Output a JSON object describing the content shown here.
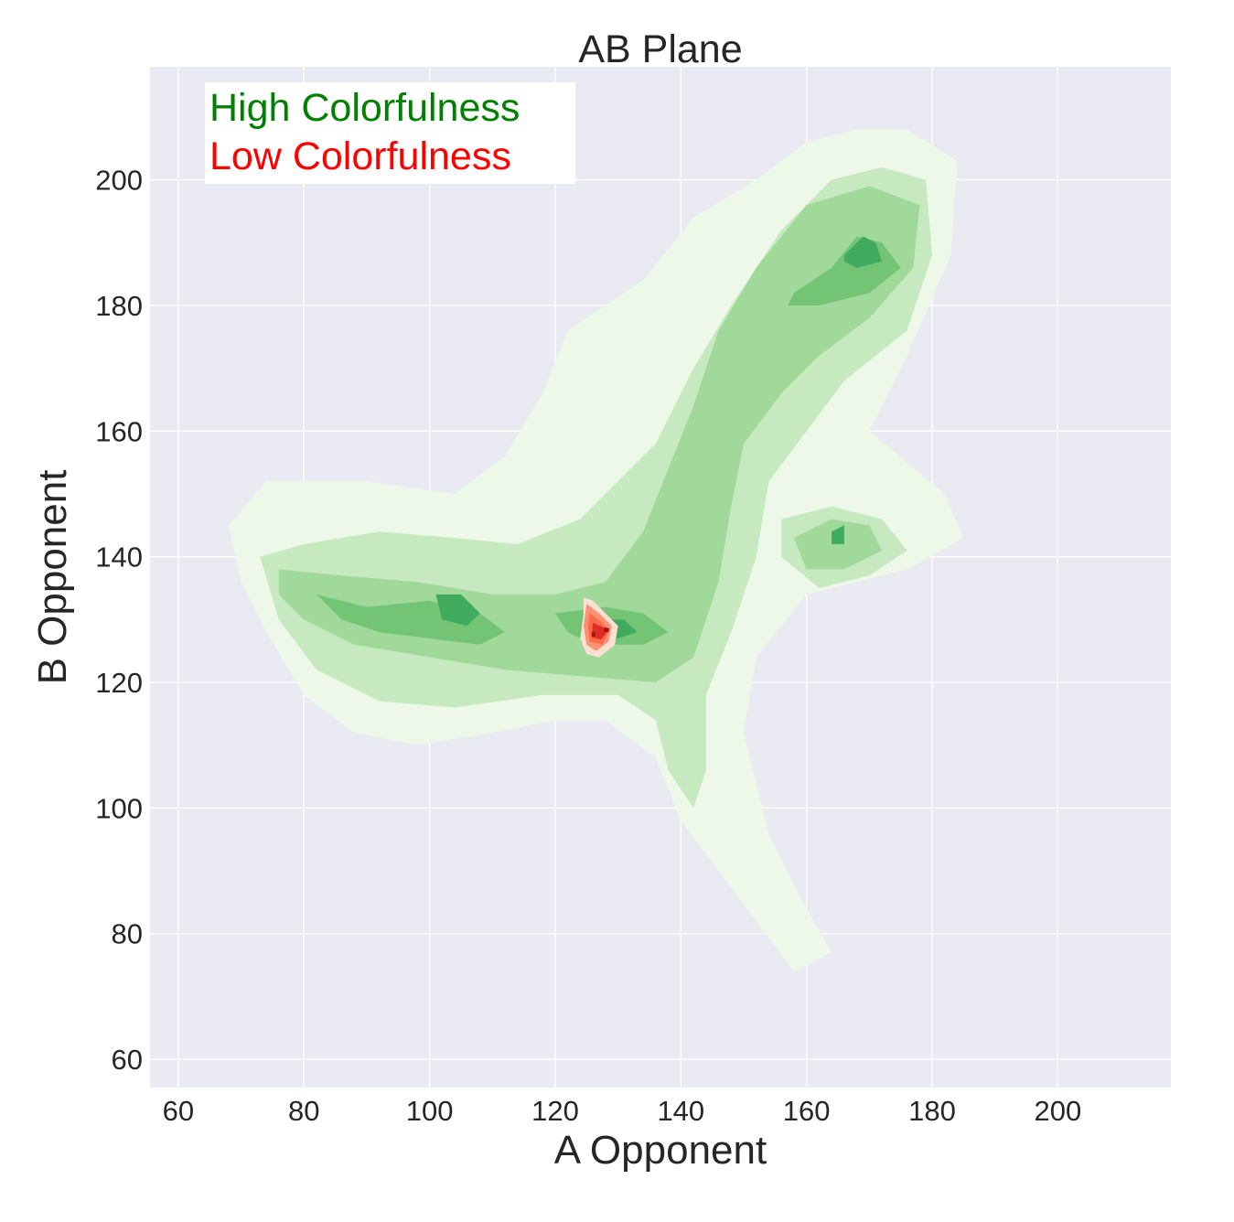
{
  "chart_data": {
    "type": "contour",
    "title": "AB Plane",
    "xlabel": "A Opponent",
    "ylabel": "B Opponent",
    "xlim": [
      55.5,
      218
    ],
    "ylim": [
      55.5,
      218
    ],
    "x_ticks": [
      60,
      80,
      100,
      120,
      140,
      160,
      180,
      200
    ],
    "y_ticks": [
      60,
      80,
      100,
      120,
      140,
      160,
      180,
      200
    ],
    "x_tick_labels": [
      "60",
      "80",
      "100",
      "120",
      "140",
      "160",
      "180",
      "200"
    ],
    "y_tick_labels": [
      "60",
      "80",
      "100",
      "120",
      "140",
      "160",
      "180",
      "200"
    ],
    "grid": true,
    "legend_placement": "top-left",
    "series": [
      {
        "name": "High Colorfulness",
        "color": "#008000",
        "level_colors": [
          "#edf8e9",
          "#c7e9c0",
          "#a1d99b",
          "#74c476",
          "#41ab5d"
        ],
        "levels": [
          [
            [
              [
                68,
                145
              ],
              [
                74,
                152
              ],
              [
                90,
                152
              ],
              [
                104,
                150
              ],
              [
                112,
                156
              ],
              [
                118,
                166
              ],
              [
                122,
                176
              ],
              [
                128,
                180
              ],
              [
                134,
                184
              ],
              [
                142,
                194
              ],
              [
                152,
                200
              ],
              [
                160,
                206
              ],
              [
                168,
                208
              ],
              [
                176,
                208
              ],
              [
                184,
                203
              ],
              [
                183,
                188
              ],
              [
                176,
                172
              ],
              [
                170,
                160
              ],
              [
                182,
                150
              ],
              [
                185,
                143
              ],
              [
                176,
                138
              ],
              [
                160,
                134
              ],
              [
                152,
                124
              ],
              [
                150,
                112
              ],
              [
                154,
                96
              ],
              [
                160,
                84
              ],
              [
                164,
                77
              ],
              [
                158,
                74
              ],
              [
                152,
                82
              ],
              [
                146,
                90
              ],
              [
                140,
                98
              ],
              [
                136,
                108
              ],
              [
                128,
                114
              ],
              [
                120,
                114
              ],
              [
                110,
                112
              ],
              [
                98,
                110
              ],
              [
                88,
                112
              ],
              [
                80,
                118
              ],
              [
                74,
                128
              ],
              [
                70,
                136
              ]
            ]
          ],
          [
            [
              [
                73,
                140
              ],
              [
                80,
                142
              ],
              [
                92,
                144
              ],
              [
                104,
                143
              ],
              [
                114,
                142
              ],
              [
                124,
                146
              ],
              [
                130,
                152
              ],
              [
                136,
                158
              ],
              [
                142,
                170
              ],
              [
                148,
                180
              ],
              [
                156,
                192
              ],
              [
                164,
                200
              ],
              [
                172,
                202
              ],
              [
                179,
                200
              ],
              [
                180,
                188
              ],
              [
                176,
                176
              ],
              [
                166,
                168
              ],
              [
                160,
                160
              ],
              [
                154,
                152
              ],
              [
                152,
                140
              ],
              [
                148,
                128
              ],
              [
                144,
                118
              ],
              [
                144,
                106
              ],
              [
                142,
                100
              ],
              [
                138,
                106
              ],
              [
                136,
                114
              ],
              [
                130,
                118
              ],
              [
                118,
                118
              ],
              [
                104,
                116
              ],
              [
                92,
                117
              ],
              [
                82,
                122
              ],
              [
                76,
                130
              ]
            ],
            [
              [
                156,
                146
              ],
              [
                164,
                148
              ],
              [
                172,
                146
              ],
              [
                176,
                141
              ],
              [
                170,
                137
              ],
              [
                162,
                135
              ],
              [
                156,
                140
              ]
            ]
          ],
          [
            [
              [
                76,
                138
              ],
              [
                86,
                137
              ],
              [
                98,
                136
              ],
              [
                110,
                134
              ],
              [
                120,
                134
              ],
              [
                128,
                136
              ],
              [
                134,
                144
              ],
              [
                138,
                154
              ],
              [
                142,
                164
              ],
              [
                146,
                176
              ],
              [
                152,
                186
              ],
              [
                160,
                196
              ],
              [
                170,
                199
              ],
              [
                178,
                196
              ],
              [
                177,
                186
              ],
              [
                170,
                178
              ],
              [
                162,
                172
              ],
              [
                156,
                166
              ],
              [
                150,
                158
              ],
              [
                148,
                148
              ],
              [
                146,
                136
              ],
              [
                142,
                124
              ],
              [
                136,
                120
              ],
              [
                124,
                121
              ],
              [
                112,
                122
              ],
              [
                100,
                124
              ],
              [
                88,
                126
              ],
              [
                80,
                130
              ],
              [
                76,
                134
              ]
            ],
            [
              [
                158,
                143
              ],
              [
                164,
                146
              ],
              [
                170,
                145
              ],
              [
                172,
                141
              ],
              [
                166,
                138
              ],
              [
                160,
                138
              ]
            ]
          ],
          [
            [
              [
                82,
                134
              ],
              [
                90,
                132
              ],
              [
                100,
                133
              ],
              [
                108,
                131
              ],
              [
                112,
                128
              ],
              [
                108,
                126
              ],
              [
                100,
                127
              ],
              [
                92,
                128
              ],
              [
                86,
                130
              ]
            ],
            [
              [
                120,
                131
              ],
              [
                128,
                132
              ],
              [
                134,
                131
              ],
              [
                138,
                128
              ],
              [
                134,
                126
              ],
              [
                126,
                126
              ],
              [
                122,
                128
              ]
            ],
            [
              [
                158,
                182
              ],
              [
                164,
                186
              ],
              [
                168,
                191
              ],
              [
                172,
                190
              ],
              [
                175,
                186
              ],
              [
                170,
                182
              ],
              [
                162,
                180
              ],
              [
                157,
                180
              ]
            ]
          ],
          [
            [
              [
                101,
                134
              ],
              [
                105,
                134
              ],
              [
                108,
                131
              ],
              [
                106,
                129
              ],
              [
                102,
                130
              ]
            ],
            [
              [
                127,
                130
              ],
              [
                131,
                130
              ],
              [
                133,
                128
              ],
              [
                130,
                127
              ],
              [
                127,
                128
              ]
            ],
            [
              [
                166,
                188
              ],
              [
                169,
                191
              ],
              [
                171,
                190
              ],
              [
                172,
                187
              ],
              [
                168,
                186
              ],
              [
                166,
                187
              ]
            ],
            [
              [
                164,
                144
              ],
              [
                166,
                145
              ],
              [
                166,
                142
              ],
              [
                164,
                142
              ]
            ]
          ]
        ]
      },
      {
        "name": "Low Colorfulness",
        "color": "#ff0000",
        "level_colors": [
          "#fee0d2",
          "#fc9272",
          "#fb6a4a",
          "#de2d26",
          "#a50f15"
        ],
        "levels": [
          [
            [
              [
                124.5,
                133.5
              ],
              [
                126,
                133
              ],
              [
                128,
                131
              ],
              [
                130,
                129
              ],
              [
                129.5,
                126
              ],
              [
                127,
                124
              ],
              [
                125,
                124.5
              ],
              [
                124,
                127
              ],
              [
                124.5,
                131
              ]
            ]
          ],
          [
            [
              [
                125,
                132.5
              ],
              [
                127,
                131
              ],
              [
                129,
                129
              ],
              [
                128.5,
                126.5
              ],
              [
                126.5,
                125
              ],
              [
                125,
                126
              ],
              [
                124.5,
                129
              ]
            ]
          ],
          [
            [
              [
                125.5,
                131
              ],
              [
                127.5,
                129.5
              ],
              [
                128.5,
                128
              ],
              [
                127.5,
                126
              ],
              [
                125.5,
                126.5
              ],
              [
                125.2,
                129
              ]
            ]
          ],
          [
            [
              [
                126,
                129.5
              ],
              [
                127.5,
                128.8
              ],
              [
                128.4,
                128.2
              ],
              [
                127.3,
                126.8
              ],
              [
                125.8,
                127.2
              ]
            ]
          ],
          [
            [
              [
                127.8,
                128.8
              ],
              [
                128.6,
                128.6
              ],
              [
                128.5,
                128
              ],
              [
                127.8,
                128.1
              ]
            ],
            [
              [
                125.8,
                128
              ],
              [
                126.4,
                128
              ],
              [
                126.4,
                127.3
              ],
              [
                125.8,
                127.3
              ]
            ]
          ]
        ]
      }
    ]
  }
}
